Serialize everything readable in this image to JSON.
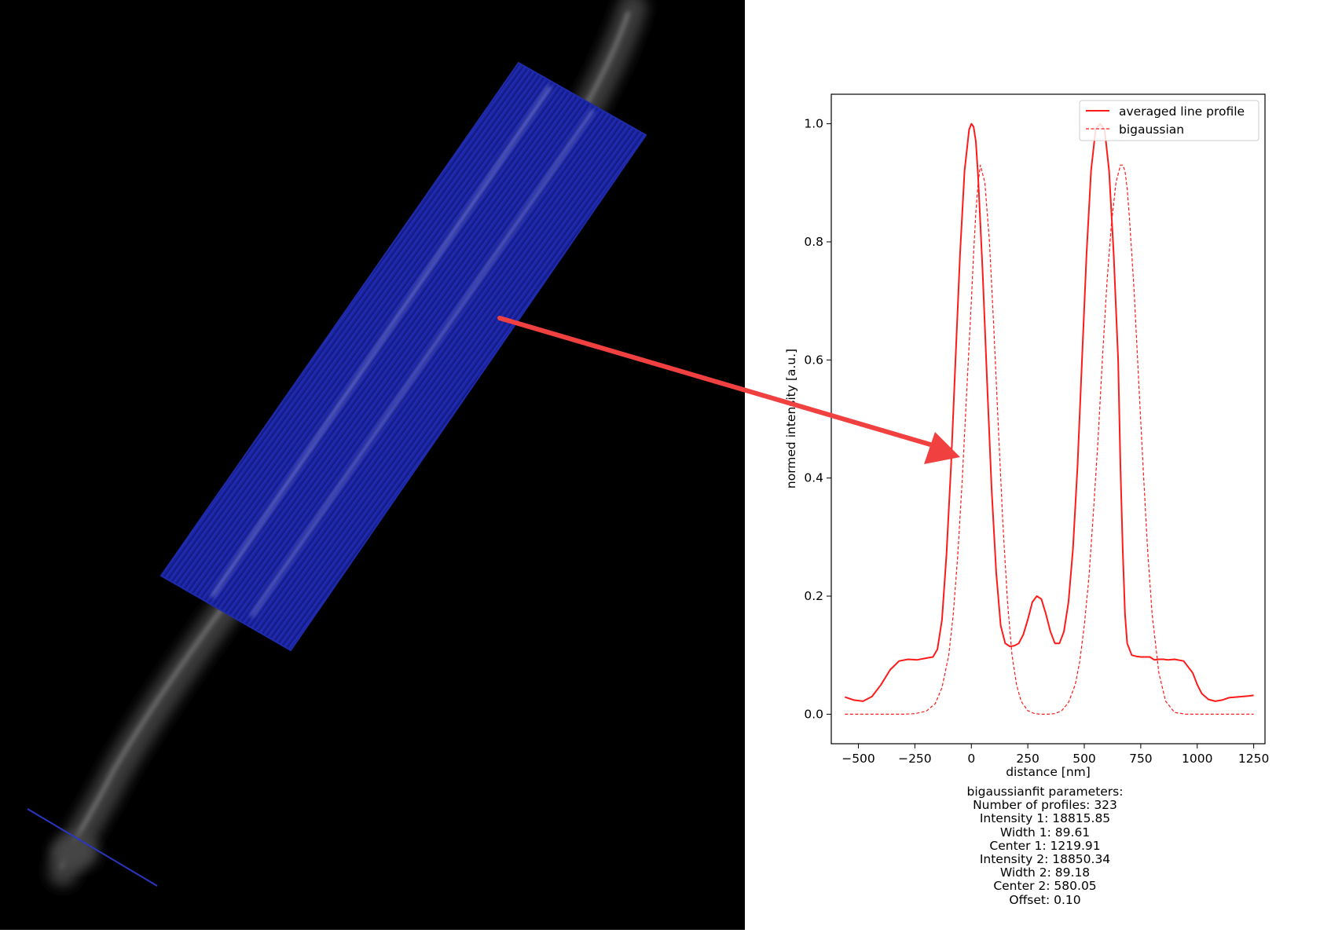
{
  "colors": {
    "overlay": "#1e2aa8",
    "profile": "#ff1a1a",
    "arrow": "#f04040",
    "background_left": "#000000"
  },
  "chart_data": {
    "type": "line",
    "xlabel": "distance [nm]",
    "ylabel": "normed intensity [a.u.]",
    "xlim": [
      -620,
      1300
    ],
    "ylim": [
      -0.05,
      1.05
    ],
    "xticks": [
      -500,
      -250,
      0,
      250,
      500,
      750,
      1000,
      1250
    ],
    "xtick_labels": [
      "−500",
      "−250",
      "0",
      "250",
      "500",
      "750",
      "1000",
      "1250"
    ],
    "yticks": [
      0.0,
      0.2,
      0.4,
      0.6,
      0.8,
      1.0
    ],
    "ytick_labels": [
      "0.0",
      "0.2",
      "0.4",
      "0.6",
      "0.8",
      "1.0"
    ],
    "grid": false,
    "legend_position": "top-right",
    "series": [
      {
        "name": "averaged line profile",
        "style": "solid",
        "x": [
          -560,
          -520,
          -480,
          -440,
          -400,
          -360,
          -320,
          -280,
          -240,
          -200,
          -170,
          -150,
          -130,
          -110,
          -90,
          -70,
          -50,
          -30,
          -10,
          0,
          10,
          20,
          30,
          50,
          70,
          90,
          110,
          130,
          150,
          170,
          190,
          210,
          230,
          250,
          270,
          290,
          310,
          330,
          350,
          370,
          390,
          410,
          430,
          450,
          470,
          490,
          510,
          530,
          550,
          570,
          590,
          610,
          630,
          650,
          660,
          670,
          680,
          690,
          710,
          730,
          750,
          770,
          790,
          810,
          830,
          850,
          870,
          900,
          940,
          980,
          1000,
          1020,
          1050,
          1080,
          1110,
          1140,
          1170,
          1200,
          1230,
          1250
        ],
        "y": [
          0.029,
          0.024,
          0.022,
          0.03,
          0.05,
          0.075,
          0.09,
          0.093,
          0.092,
          0.095,
          0.097,
          0.11,
          0.16,
          0.27,
          0.42,
          0.6,
          0.78,
          0.92,
          0.99,
          1.0,
          0.995,
          0.97,
          0.91,
          0.75,
          0.56,
          0.38,
          0.24,
          0.15,
          0.12,
          0.115,
          0.116,
          0.12,
          0.135,
          0.16,
          0.19,
          0.2,
          0.195,
          0.17,
          0.14,
          0.12,
          0.12,
          0.14,
          0.19,
          0.28,
          0.42,
          0.6,
          0.78,
          0.92,
          0.99,
          1.0,
          0.99,
          0.92,
          0.78,
          0.6,
          0.42,
          0.28,
          0.17,
          0.12,
          0.1,
          0.098,
          0.097,
          0.097,
          0.097,
          0.092,
          0.093,
          0.093,
          0.092,
          0.093,
          0.09,
          0.07,
          0.05,
          0.035,
          0.025,
          0.022,
          0.024,
          0.028,
          0.029,
          0.03,
          0.031,
          0.032
        ]
      },
      {
        "name": "bigaussian",
        "style": "dashed",
        "x": [
          -560,
          -500,
          -400,
          -300,
          -250,
          -200,
          -160,
          -130,
          -100,
          -80,
          -60,
          -40,
          -20,
          0,
          10,
          20,
          30,
          40,
          60,
          80,
          100,
          120,
          140,
          160,
          180,
          200,
          220,
          250,
          280,
          310,
          340,
          370,
          400,
          430,
          460,
          480,
          500,
          520,
          540,
          560,
          580,
          600,
          620,
          640,
          660,
          670,
          680,
          690,
          700,
          720,
          740,
          760,
          780,
          800,
          830,
          860,
          900,
          950,
          1000,
          1100,
          1200,
          1250
        ],
        "y": [
          0.0,
          0.0,
          0.0,
          0.0,
          0.001,
          0.005,
          0.018,
          0.045,
          0.1,
          0.17,
          0.27,
          0.4,
          0.55,
          0.7,
          0.78,
          0.85,
          0.9,
          0.93,
          0.9,
          0.8,
          0.65,
          0.48,
          0.32,
          0.19,
          0.1,
          0.05,
          0.022,
          0.006,
          0.001,
          0.0,
          0.0,
          0.001,
          0.006,
          0.02,
          0.05,
          0.09,
          0.15,
          0.23,
          0.34,
          0.46,
          0.6,
          0.73,
          0.83,
          0.9,
          0.93,
          0.93,
          0.92,
          0.89,
          0.84,
          0.72,
          0.57,
          0.42,
          0.28,
          0.17,
          0.07,
          0.022,
          0.003,
          0.0,
          0.0,
          0.0,
          0.0,
          0.0
        ]
      }
    ]
  },
  "fit_params": {
    "title": "bigaussianfit parameters:",
    "lines": [
      "Number of profiles: 323",
      "Intensity 1: 18815.85",
      "Width 1: 89.61",
      "Center 1: 1219.91",
      "Intensity 2: 18850.34",
      "Width 2: 89.18",
      "Center 2: 580.05",
      "Offset: 0.10"
    ]
  }
}
